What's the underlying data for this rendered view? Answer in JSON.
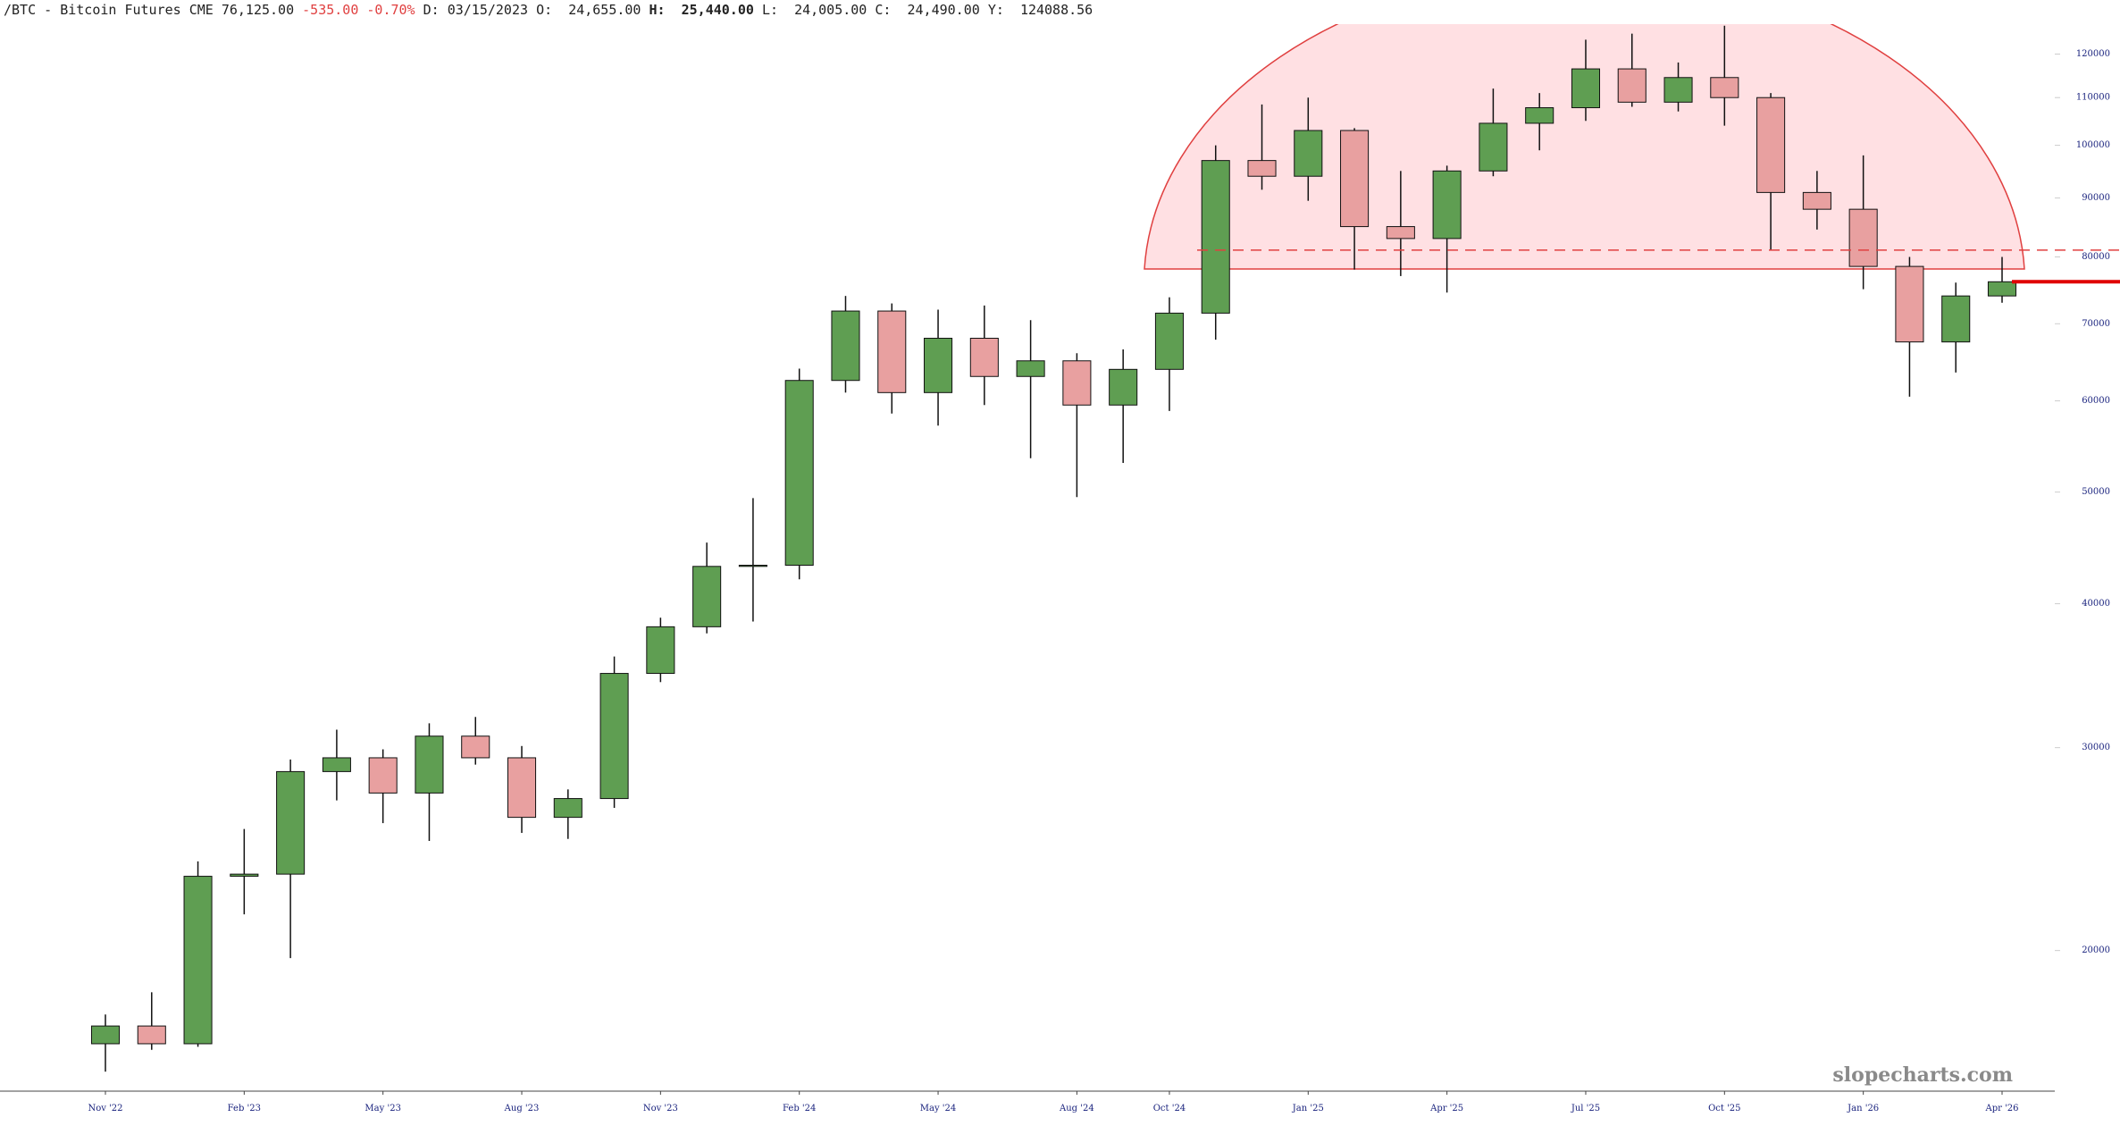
{
  "header": {
    "symbol": "/BTC - Bitcoin Futures CME",
    "last": "76,125.00",
    "change": "-535.00",
    "change_pct": "-0.70%",
    "fields": [
      {
        "label": "D:",
        "value": "03/15/2023"
      },
      {
        "label": "O:",
        "value": "24,655.00"
      },
      {
        "label": "H:",
        "value": "25,440.00"
      },
      {
        "label": "L:",
        "value": "24,005.00"
      },
      {
        "label": "C:",
        "value": "24,490.00"
      },
      {
        "label": "Y:",
        "value": "124088.56"
      }
    ]
  },
  "chart_data": {
    "type": "candlestick",
    "x": [
      "2022-11",
      "2022-12",
      "2023-01",
      "2023-02",
      "2023-03",
      "2023-04",
      "2023-05",
      "2023-06",
      "2023-07",
      "2023-08",
      "2023-09",
      "2023-10",
      "2023-11",
      "2023-12",
      "2024-01",
      "2024-02",
      "2024-03",
      "2024-04",
      "2024-05",
      "2024-06",
      "2024-07",
      "2024-08",
      "2024-09",
      "2024-10",
      "2024-11",
      "2024-12",
      "2025-01",
      "2025-02",
      "2025-03",
      "2025-04",
      "2025-05",
      "2025-06",
      "2025-07",
      "2025-08",
      "2025-09",
      "2025-10",
      "2025-11",
      "2025-12",
      "2026-01",
      "2026-02",
      "2026-03",
      "2026-04"
    ],
    "open": [
      16600,
      17200,
      16600,
      23200,
      23300,
      28600,
      29400,
      27400,
      30700,
      29400,
      26100,
      27100,
      34800,
      38200,
      43100,
      43200,
      62500,
      71800,
      61000,
      68000,
      63000,
      65000,
      59500,
      63900,
      71500,
      97000,
      94000,
      103000,
      85000,
      83000,
      95000,
      104500,
      107800,
      116500,
      109000,
      114500,
      110000,
      91000,
      88000,
      78500,
      67500,
      74000
    ],
    "high": [
      17600,
      18400,
      23900,
      25500,
      29300,
      31100,
      29900,
      31500,
      31900,
      30100,
      27600,
      36000,
      38900,
      45200,
      49400,
      64000,
      74000,
      72900,
      72000,
      72600,
      70500,
      66000,
      66500,
      73800,
      100000,
      108500,
      110000,
      103500,
      95000,
      96000,
      112000,
      111000,
      123500,
      125000,
      118000,
      127000,
      111000,
      95000,
      98000,
      80000,
      76000,
      80000
    ],
    "low": [
      15700,
      16400,
      16500,
      21500,
      19700,
      27000,
      25800,
      24900,
      29000,
      25300,
      25000,
      26600,
      34200,
      37700,
      38600,
      42000,
      61000,
      58500,
      57100,
      59500,
      53500,
      49500,
      53000,
      58800,
      67800,
      91500,
      89500,
      78000,
      77000,
      74500,
      94000,
      99000,
      105000,
      108000,
      107000,
      104000,
      81000,
      84500,
      75000,
      60500,
      63500,
      73000
    ],
    "close": [
      17200,
      16600,
      23200,
      23300,
      28600,
      29400,
      27400,
      30700,
      29400,
      26100,
      27100,
      34800,
      38200,
      43100,
      43200,
      62500,
      71800,
      61000,
      68000,
      63000,
      65000,
      59500,
      63900,
      71500,
      97000,
      94000,
      103000,
      85000,
      83000,
      95000,
      104500,
      107800,
      116500,
      109000,
      114500,
      110000,
      91000,
      88000,
      78500,
      67500,
      74000,
      76125
    ],
    "up_color": "#5f9e52",
    "down_color": "#e8a0a0",
    "log_scale": true,
    "ylim": [
      15100,
      127400
    ],
    "yticks": [
      20000,
      30000,
      40000,
      50000,
      60000,
      70000,
      80000,
      90000,
      100000,
      110000,
      120000
    ],
    "xticks": [
      {
        "value": "2022-11",
        "label": "Nov '22"
      },
      {
        "value": "2023-02",
        "label": "Feb '23"
      },
      {
        "value": "2023-05",
        "label": "May '23"
      },
      {
        "value": "2023-08",
        "label": "Aug '23"
      },
      {
        "value": "2023-11",
        "label": "Nov '23"
      },
      {
        "value": "2024-02",
        "label": "Feb '24"
      },
      {
        "value": "2024-05",
        "label": "May '24"
      },
      {
        "value": "2024-08",
        "label": "Aug '24"
      },
      {
        "value": "2024-10",
        "label": "Oct '24"
      },
      {
        "value": "2025-01",
        "label": "Jan '25"
      },
      {
        "value": "2025-04",
        "label": "Apr '25"
      },
      {
        "value": "2025-07",
        "label": "Jul '25"
      },
      {
        "value": "2025-10",
        "label": "Oct '25"
      },
      {
        "value": "2026-01",
        "label": "Jan '26"
      },
      {
        "value": "2026-04",
        "label": "Apr '26"
      }
    ],
    "reference_lines": [
      {
        "value": 81100,
        "style": "dashed",
        "color": "#e04040"
      },
      {
        "value": 76125,
        "style": "solid",
        "color": "#e00000"
      }
    ],
    "watermark": "slopecharts.com"
  }
}
